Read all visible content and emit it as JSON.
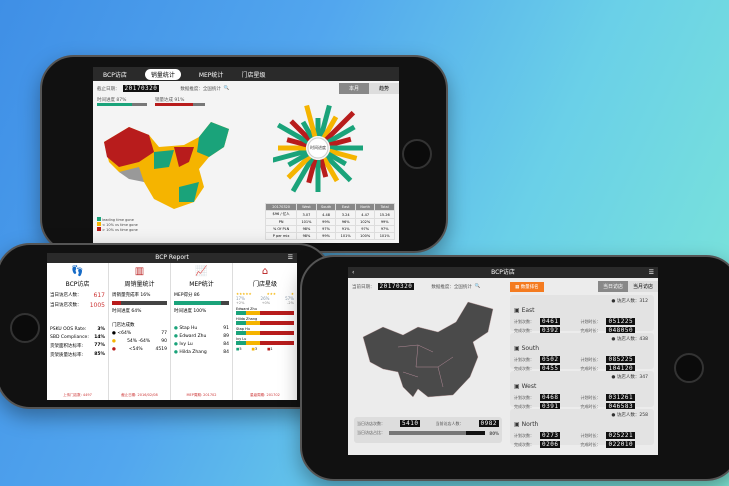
{
  "top_phone": {
    "tabs": [
      "BCP访店",
      "销量统计",
      "MEP统计",
      "门店星级"
    ],
    "active_tab": "销量统计",
    "date_label": "截止日期：",
    "date_value": "20170320",
    "dimension_label": "数据推度：全国统计",
    "time_progress_label": "时间进度 87%",
    "time_progress": 87,
    "sales_label": "销量达成 91%",
    "sales_progress": 91,
    "toggle": [
      "本月",
      "趋势"
    ],
    "center_label": "时间进度",
    "legend": [
      "leading time gone",
      "< 10% vs time gone",
      "> 10% vs time gone"
    ],
    "legend_colors": [
      "#1aa37a",
      "#f5b400",
      "#b81c1c"
    ],
    "table": {
      "headers": [
        "20170320",
        "West",
        "South",
        "East",
        "North",
        "Total"
      ],
      "rows": [
        [
          "$96 / 亿人",
          "3.07",
          "4.48",
          "3.24",
          "4.47",
          "15.26"
        ],
        [
          "PN",
          "101%",
          "99%",
          "96%",
          "102%",
          "99%"
        ],
        [
          "% Of PLN",
          "98%",
          "97%",
          "91%",
          "97%",
          "97%"
        ],
        [
          "P per mix",
          "98%",
          "99%",
          "101%",
          "100%",
          "101%"
        ]
      ]
    }
  },
  "left_phone": {
    "title": "BCP Report",
    "cols": [
      {
        "title": "BCP访店",
        "lines": [
          [
            "当日访店人数：",
            "617"
          ],
          [
            "当日访店次数：",
            "1005"
          ]
        ],
        "stats": [
          [
            "PSKU OOS Rate:",
            "3%"
          ],
          [
            "SBD Compliance:",
            "14%"
          ],
          [
            "货架面积达标率:",
            "77%"
          ],
          [
            "货架质量达标率:",
            "85%"
          ]
        ],
        "foot": "上传门店数: 4497"
      },
      {
        "title": "周销量统计",
        "bar1": "周销量完成率 16%",
        "bar2": "时间进度 64%",
        "sub": "门店达成数",
        "rows": [
          [
            "<64%",
            "77"
          ],
          [
            "54% -64%",
            "90"
          ],
          [
            "<54%",
            "4519"
          ]
        ],
        "foot": "截止日期: 2016/02/08"
      },
      {
        "title": "MEP统计",
        "bar1": "MEP得分 86",
        "bar2": "时间进度 100%",
        "people": [
          [
            "Stap Hu",
            "91"
          ],
          [
            "Edward Zhu",
            "89"
          ],
          [
            "Ivy Lu",
            "84"
          ],
          [
            "Hilda Zhang",
            "84"
          ]
        ],
        "foot": "MEP周期: 201702"
      },
      {
        "title": "门店星级",
        "stars": [
          [
            "★★★★★",
            "17%",
            "+2%"
          ],
          [
            "★★★",
            "26%",
            "+0%"
          ],
          [
            "★",
            "57%",
            "-2%"
          ]
        ],
        "people": [
          "Edward Zhu",
          "Hilda Zhang",
          "Stap Hu",
          "Ivy Lu"
        ],
        "legend": [
          "5",
          "3",
          "1"
        ],
        "foot": "星级周期: 201702"
      }
    ]
  },
  "right_phone": {
    "title": "BCP访店",
    "date_label": "当前日期：",
    "date_value": "20170320",
    "dimension_label": "数据推度：全国统计",
    "rank_button": "数量排名",
    "toggle": [
      "当日访店",
      "当月访店"
    ],
    "visits_label": "当日访店次数：",
    "visits": "5410",
    "people_label": "当前访店人数：",
    "people": "0982",
    "rate_label": "当日访店占比：",
    "rate": "80%",
    "rate_value": 80,
    "regions": [
      {
        "name": "East",
        "count": "访店人数：312",
        "plan_count": "0461",
        "done_count": "0392",
        "plan_time": "051225",
        "done_time": "048050"
      },
      {
        "name": "South",
        "count": "访店人数：438",
        "plan_count": "0502",
        "done_count": "0455",
        "plan_time": "085225",
        "done_time": "104120"
      },
      {
        "name": "West",
        "count": "访店人数：347",
        "plan_count": "0468",
        "done_count": "0391",
        "plan_time": "031261",
        "done_time": "046583"
      },
      {
        "name": "North",
        "count": "访店人数：258",
        "plan_count": "0273",
        "done_count": "0206",
        "plan_time": "025221",
        "done_time": "022010"
      }
    ],
    "labels": {
      "plan_count": "计划次数：",
      "done_count": "完成次数：",
      "plan_time": "计划时长：",
      "done_time": "完成时长："
    }
  }
}
